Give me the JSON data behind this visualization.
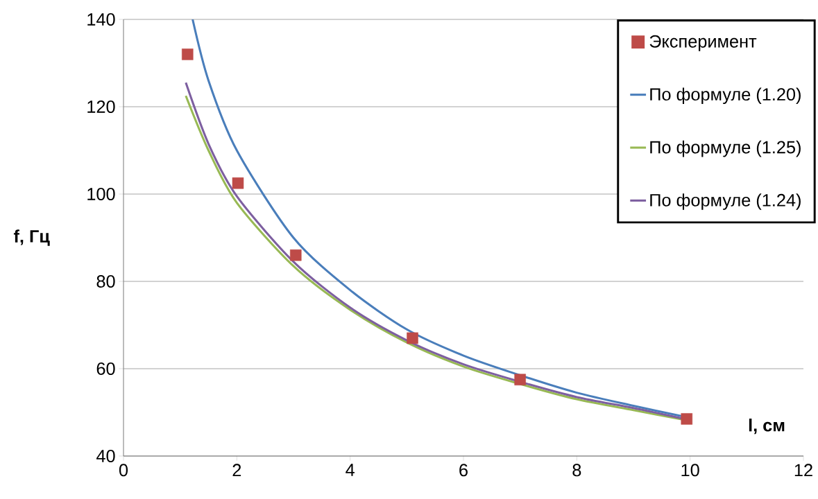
{
  "chart_data": {
    "type": "line",
    "xlabel": "l, см",
    "ylabel": "f, Гц",
    "xlim": [
      0,
      12
    ],
    "ylim": [
      40,
      140
    ],
    "xticks": [
      0,
      2,
      4,
      6,
      8,
      10,
      12
    ],
    "yticks": [
      40,
      60,
      80,
      100,
      120,
      140
    ],
    "grid": "y",
    "legend": "top right",
    "series": [
      {
        "name": "Эксперимент",
        "type": "scatter",
        "marker": "square",
        "color": "#be4b48",
        "x": [
          1.13,
          2.02,
          3.04,
          5.1,
          7.0,
          9.94
        ],
        "values": [
          132,
          102.5,
          86,
          67,
          57.5,
          48.5
        ]
      },
      {
        "name": "По формуле (1.20)",
        "marker": "none",
        "color": "#4a7ebb",
        "x": [
          1.22,
          1.5,
          2,
          3,
          4,
          5,
          6,
          7,
          8,
          9,
          9.9
        ],
        "values": [
          140,
          126,
          110,
          90,
          78,
          69,
          63,
          58.5,
          54.5,
          51.5,
          49
        ]
      },
      {
        "name": "По формуле (1.25)",
        "marker": "none",
        "color": "#98b954",
        "x": [
          1.1,
          1.5,
          2,
          3,
          4,
          5,
          6,
          7,
          8,
          9,
          9.9
        ],
        "values": [
          122.5,
          110,
          98,
          83.5,
          73.5,
          66,
          60.5,
          56.5,
          53,
          50.5,
          48.3
        ]
      },
      {
        "name": "По формуле (1.24)",
        "marker": "none",
        "color": "#7d5fa0",
        "x": [
          1.1,
          1.5,
          2,
          3,
          4,
          5,
          6,
          7,
          8,
          9,
          9.9
        ],
        "values": [
          125.5,
          111.5,
          99.5,
          84.5,
          74,
          66.5,
          61,
          57,
          53.5,
          51,
          48.5
        ]
      }
    ]
  }
}
